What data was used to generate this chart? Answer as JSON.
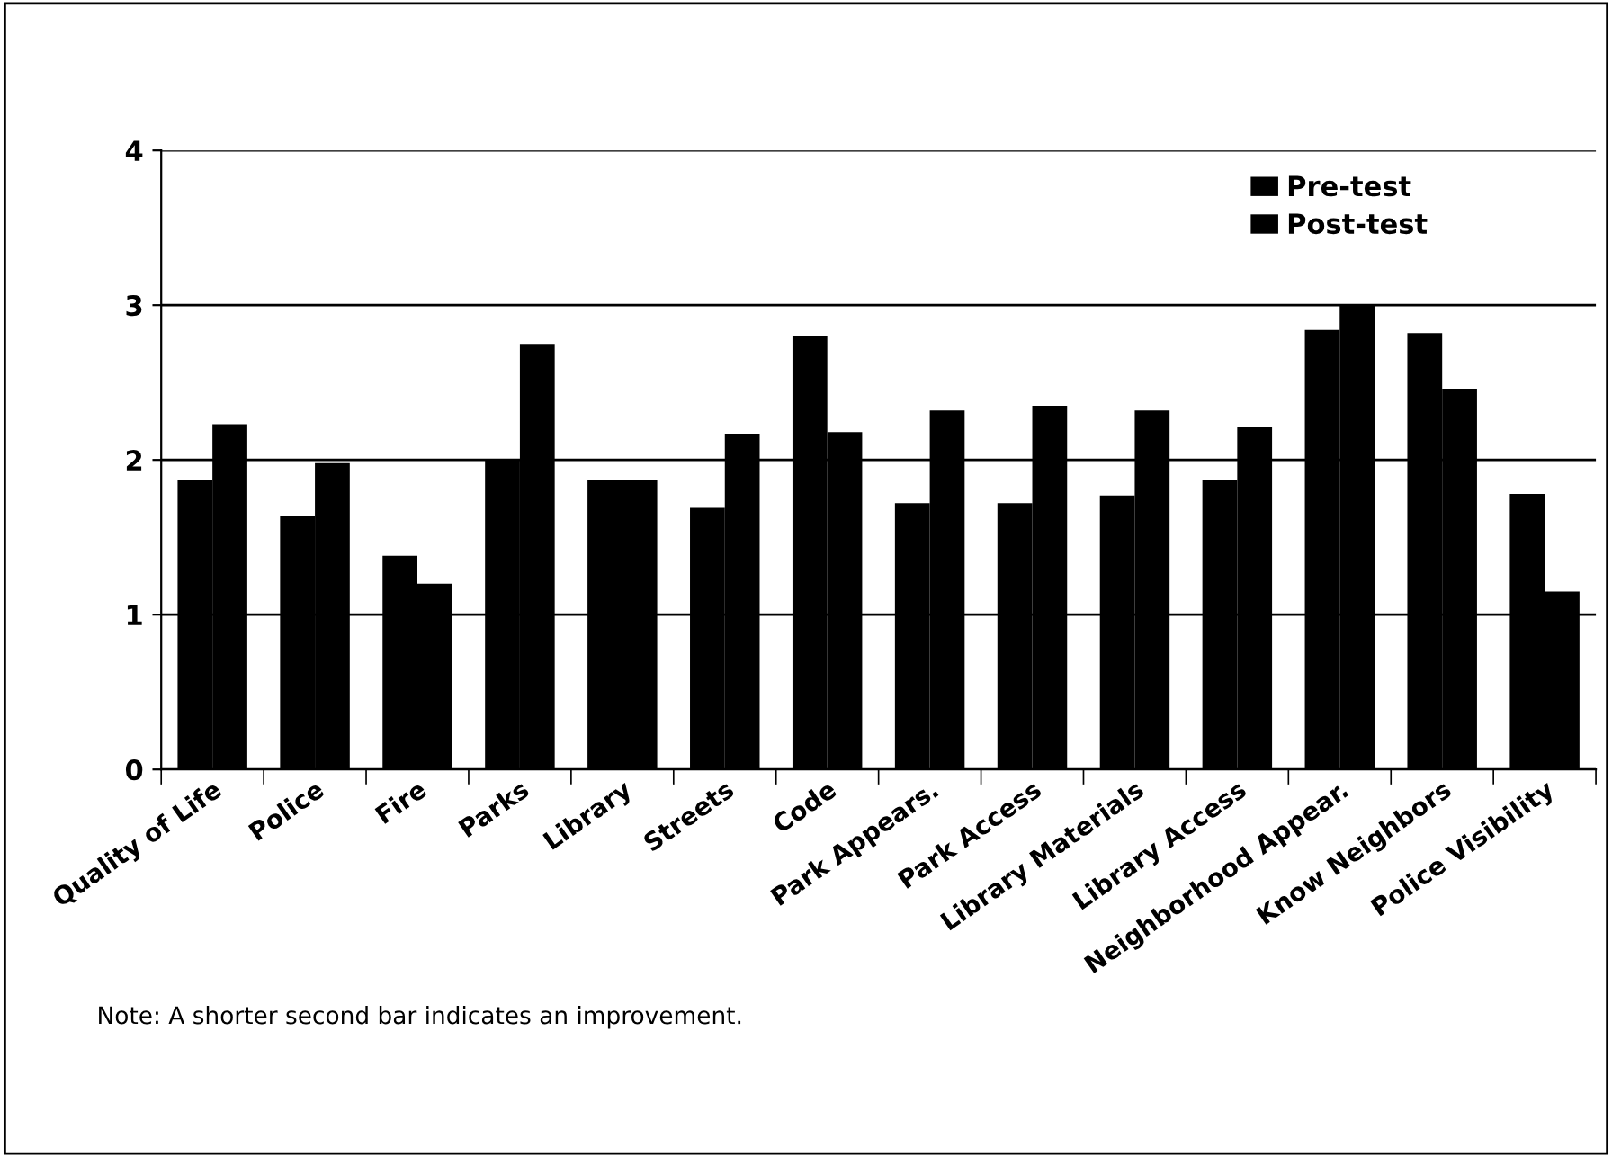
{
  "chart_data": {
    "type": "bar",
    "categories": [
      "Quality of Life",
      "Police",
      "Fire",
      "Parks",
      "Library",
      "Streets",
      "Code",
      "Park Appears.",
      "Park Access",
      "Library Materials",
      "Library Access",
      "Neighborhood Appear.",
      "Know Neighbors",
      "Police Visibility"
    ],
    "series": [
      {
        "name": "Pre-test",
        "color": "#000000",
        "values": [
          1.87,
          1.64,
          1.38,
          2.0,
          1.87,
          1.69,
          2.8,
          1.72,
          1.72,
          1.77,
          1.87,
          2.84,
          2.82,
          1.78
        ]
      },
      {
        "name": "Post-test",
        "color": "#000000",
        "values": [
          2.23,
          1.98,
          1.2,
          2.75,
          1.87,
          2.17,
          2.18,
          2.32,
          2.35,
          2.32,
          2.21,
          3.0,
          2.46,
          1.15
        ]
      }
    ],
    "ylim": [
      0,
      4
    ],
    "yticks": [
      0,
      1,
      2,
      3,
      4
    ],
    "grid": "y",
    "legend": "top right",
    "annotations": [
      "Note: A shorter second bar indicates an improvement."
    ]
  }
}
